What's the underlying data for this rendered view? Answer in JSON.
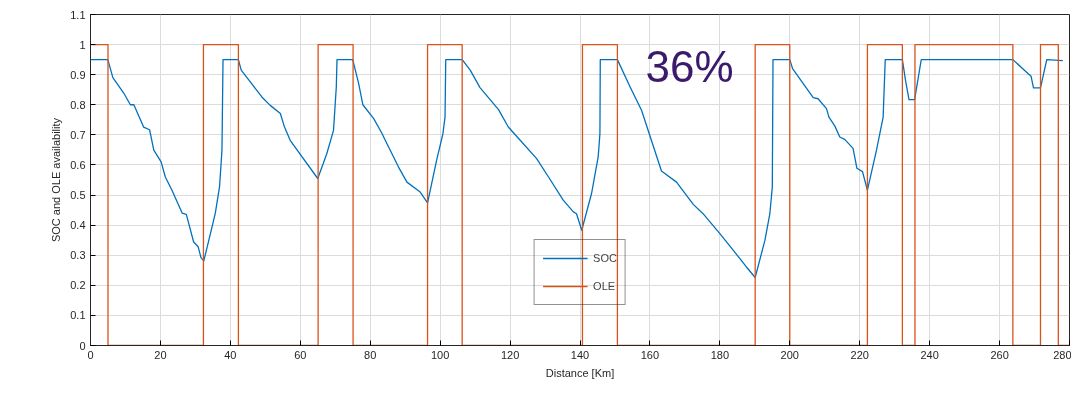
{
  "chart_data": {
    "type": "line",
    "xlabel": "Distance [Km]",
    "ylabel": "SOC and OLE availability",
    "xlim": [
      0,
      280
    ],
    "xticks": [
      0,
      20,
      40,
      60,
      80,
      100,
      120,
      140,
      160,
      180,
      200,
      220,
      240,
      260,
      280
    ],
    "ylim": [
      0,
      1.1
    ],
    "yticks": [
      0,
      0.1,
      0.2,
      0.3,
      0.4,
      0.5,
      0.6,
      0.7,
      0.8,
      0.9,
      1,
      1.1
    ],
    "grid": true,
    "legend": "bottom",
    "marker": "none",
    "line_style": "solid",
    "annotations": [
      "36%"
    ],
    "series": [
      {
        "name": "SOC",
        "color": "#0072bd",
        "x": [
          0,
          4.95,
          6.4,
          9.5,
          11.4,
          12.4,
          15.2,
          16.9,
          18.1,
          20.2,
          21.4,
          23.3,
          26.2,
          27.4,
          29.5,
          30.8,
          31.6,
          32.4,
          34.3,
          35.7,
          36.9,
          37.6,
          37.9,
          42.3,
          43.1,
          45.7,
          49.0,
          51.4,
          54.3,
          55.4,
          57.1,
          65.0,
          67.6,
          69.5,
          70.3,
          70.5,
          75.0,
          76.7,
          77.9,
          81.0,
          83.3,
          84.3,
          88.1,
          90.5,
          94.3,
          96.4,
          99.0,
          100.8,
          101.4,
          101.6,
          106.3,
          108.6,
          111.4,
          116.7,
          119.5,
          122.9,
          127.6,
          131.0,
          135.2,
          138.1,
          139.0,
          140.5,
          143.3,
          145.2,
          145.7,
          145.8,
          150.7,
          154.3,
          157.6,
          163.3,
          167.6,
          172.4,
          175.2,
          180.0,
          183.8,
          187.6,
          190.1,
          192.9,
          194.3,
          195.0,
          195.2,
          200,
          200.8,
          206.7,
          208.1,
          210.5,
          211.2,
          212.9,
          214.3,
          215.7,
          218.1,
          219.2,
          220.8,
          222.2,
          224.8,
          226.7,
          227.3,
          232.2,
          233.1,
          234.1,
          235.7,
          237.6,
          263.8,
          267.1,
          269.0,
          269.7,
          271.7,
          273.5,
          278.1
        ],
        "values": [
          0.95,
          0.95,
          0.89,
          0.839,
          0.8,
          0.8,
          0.726,
          0.717,
          0.649,
          0.61,
          0.56,
          0.516,
          0.44,
          0.436,
          0.344,
          0.328,
          0.292,
          0.281,
          0.372,
          0.44,
          0.527,
          0.649,
          0.95,
          0.95,
          0.915,
          0.876,
          0.826,
          0.798,
          0.771,
          0.729,
          0.682,
          0.555,
          0.638,
          0.715,
          0.859,
          0.95,
          0.95,
          0.87,
          0.8,
          0.754,
          0.706,
          0.682,
          0.593,
          0.543,
          0.51,
          0.474,
          0.616,
          0.704,
          0.76,
          0.95,
          0.95,
          0.915,
          0.857,
          0.784,
          0.726,
          0.682,
          0.621,
          0.56,
          0.483,
          0.444,
          0.438,
          0.383,
          0.505,
          0.627,
          0.704,
          0.95,
          0.95,
          0.86,
          0.782,
          0.58,
          0.543,
          0.469,
          0.438,
          0.372,
          0.317,
          0.261,
          0.226,
          0.35,
          0.438,
          0.527,
          0.95,
          0.95,
          0.92,
          0.824,
          0.82,
          0.787,
          0.759,
          0.729,
          0.693,
          0.685,
          0.655,
          0.589,
          0.578,
          0.516,
          0.649,
          0.759,
          0.95,
          0.95,
          0.881,
          0.817,
          0.817,
          0.95,
          0.95,
          0.915,
          0.895,
          0.856,
          0.856,
          0.95,
          0.947
        ]
      },
      {
        "name": "OLE",
        "color": "#d95319",
        "type": "step",
        "x": [
          0,
          5.0,
          32.3,
          42.3,
          65.1,
          75.1,
          96.4,
          106.3,
          140.7,
          150.7,
          190.1,
          200,
          222.2,
          232.2,
          235.8,
          263.8,
          271.7,
          276.8,
          280
        ],
        "values": [
          1,
          0,
          1,
          0,
          1,
          0,
          1,
          0,
          1,
          0,
          1,
          0,
          1,
          0,
          1,
          0,
          1,
          0,
          0
        ]
      }
    ]
  }
}
